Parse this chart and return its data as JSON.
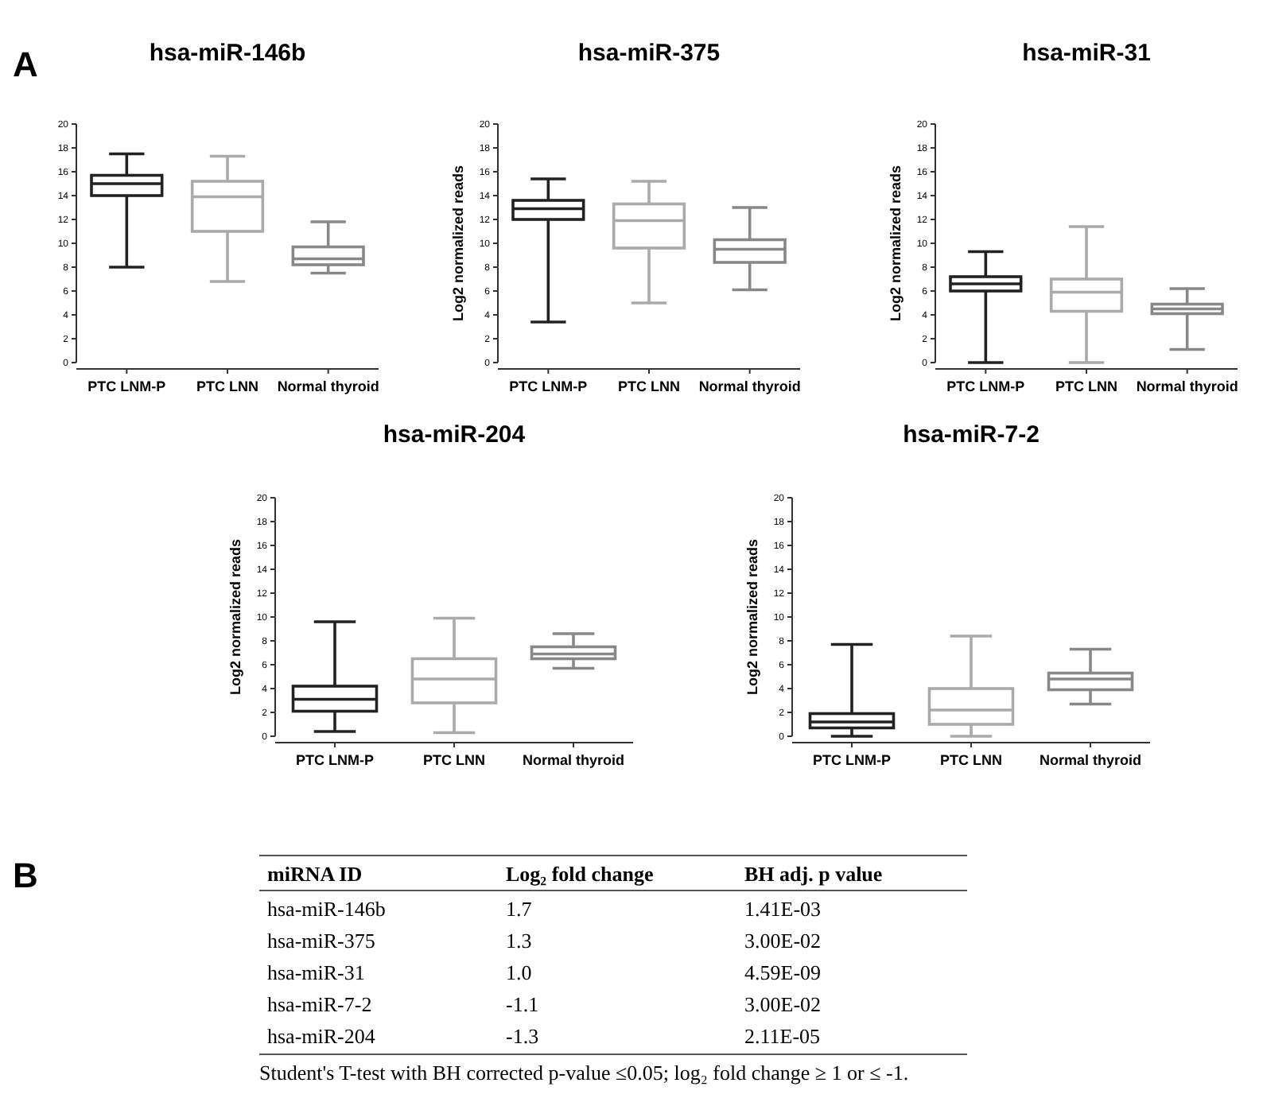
{
  "chart_data": [
    {
      "type": "box",
      "title": "hsa-miR-146b",
      "annotations": [
        "A"
      ],
      "categories": [
        "PTC LNM-P",
        "PTC LNN",
        "Normal thyroid"
      ],
      "colors": [
        "#222222",
        "#aaaaaa",
        "#888888"
      ],
      "ylim": [
        0,
        20
      ],
      "yticks": [
        0,
        2,
        4,
        6,
        8,
        10,
        12,
        14,
        16,
        18,
        20
      ],
      "boxes": [
        {
          "low": 8.0,
          "q1": 14.0,
          "median": 15.0,
          "q3": 15.7,
          "high": 17.5
        },
        {
          "low": 6.8,
          "q1": 11.0,
          "median": 13.9,
          "q3": 15.2,
          "high": 17.3
        },
        {
          "low": 7.5,
          "q1": 8.2,
          "median": 8.7,
          "q3": 9.7,
          "high": 11.8
        }
      ]
    },
    {
      "type": "box",
      "title": "hsa-miR-375",
      "ylabel": "Log2 normalized reads",
      "categories": [
        "PTC LNM-P",
        "PTC LNN",
        "Normal thyroid"
      ],
      "colors": [
        "#222222",
        "#aaaaaa",
        "#888888"
      ],
      "ylim": [
        0,
        20
      ],
      "yticks": [
        0,
        2,
        4,
        6,
        8,
        10,
        12,
        14,
        16,
        18,
        20
      ],
      "boxes": [
        {
          "low": 3.4,
          "q1": 12.0,
          "median": 12.9,
          "q3": 13.6,
          "high": 15.4
        },
        {
          "low": 5.0,
          "q1": 9.6,
          "median": 11.9,
          "q3": 13.3,
          "high": 15.2
        },
        {
          "low": 6.1,
          "q1": 8.4,
          "median": 9.5,
          "q3": 10.3,
          "high": 13.0
        }
      ]
    },
    {
      "type": "box",
      "title": "hsa-miR-31",
      "ylabel": "Log2 normalized reads",
      "categories": [
        "PTC LNM-P",
        "PTC LNN",
        "Normal thyroid"
      ],
      "colors": [
        "#222222",
        "#aaaaaa",
        "#888888"
      ],
      "ylim": [
        0,
        20
      ],
      "yticks": [
        0,
        2,
        4,
        6,
        8,
        10,
        12,
        14,
        16,
        18,
        20
      ],
      "boxes": [
        {
          "low": 0,
          "q1": 6.0,
          "median": 6.6,
          "q3": 7.2,
          "high": 9.3
        },
        {
          "low": 0,
          "q1": 4.3,
          "median": 5.9,
          "q3": 7.0,
          "high": 11.4
        },
        {
          "low": 1.1,
          "q1": 4.1,
          "median": 4.5,
          "q3": 4.9,
          "high": 6.2
        }
      ]
    },
    {
      "type": "box",
      "title": "hsa-miR-204",
      "ylabel": "Log2 normalized reads",
      "categories": [
        "PTC LNM-P",
        "PTC LNN",
        "Normal thyroid"
      ],
      "colors": [
        "#222222",
        "#aaaaaa",
        "#888888"
      ],
      "ylim": [
        0,
        20
      ],
      "yticks": [
        0,
        2,
        4,
        6,
        8,
        10,
        12,
        14,
        16,
        18,
        20
      ],
      "boxes": [
        {
          "low": 0.4,
          "q1": 2.1,
          "median": 3.1,
          "q3": 4.2,
          "high": 9.6
        },
        {
          "low": 0.3,
          "q1": 2.8,
          "median": 4.8,
          "q3": 6.5,
          "high": 9.9
        },
        {
          "low": 5.7,
          "q1": 6.5,
          "median": 6.9,
          "q3": 7.5,
          "high": 8.6
        }
      ]
    },
    {
      "type": "box",
      "title": "hsa-miR-7-2",
      "ylabel": "Log2 normalized reads",
      "categories": [
        "PTC LNM-P",
        "PTC LNN",
        "Normal thyroid"
      ],
      "colors": [
        "#222222",
        "#aaaaaa",
        "#888888"
      ],
      "ylim": [
        0,
        20
      ],
      "yticks": [
        0,
        2,
        4,
        6,
        8,
        10,
        12,
        14,
        16,
        18,
        20
      ],
      "boxes": [
        {
          "low": 0,
          "q1": 0.7,
          "median": 1.2,
          "q3": 1.9,
          "high": 7.7
        },
        {
          "low": 0,
          "q1": 1.0,
          "median": 2.2,
          "q3": 4.0,
          "high": 8.4
        },
        {
          "low": 2.7,
          "q1": 3.9,
          "median": 4.8,
          "q3": 5.3,
          "high": 7.3
        }
      ]
    },
    {
      "type": "other",
      "annotations": [
        "B",
        "miRNA ID",
        "Log₂ fold change",
        "BH adj. p value",
        "hsa-miR-146b",
        "1.7",
        "1.41E-03",
        "hsa-miR-375",
        "1.3",
        "3.00E-02",
        "hsa-miR-31",
        "1.0",
        "4.59E-09",
        "hsa-miR-7-2",
        "-1.1",
        "3.00E-02",
        "hsa-miR-204",
        "-1.3",
        "2.11E-05",
        "Student's T-test with BH corrected p-value ≤0.05; log₂ fold change ≥ 1 or ≤ -1."
      ]
    }
  ]
}
